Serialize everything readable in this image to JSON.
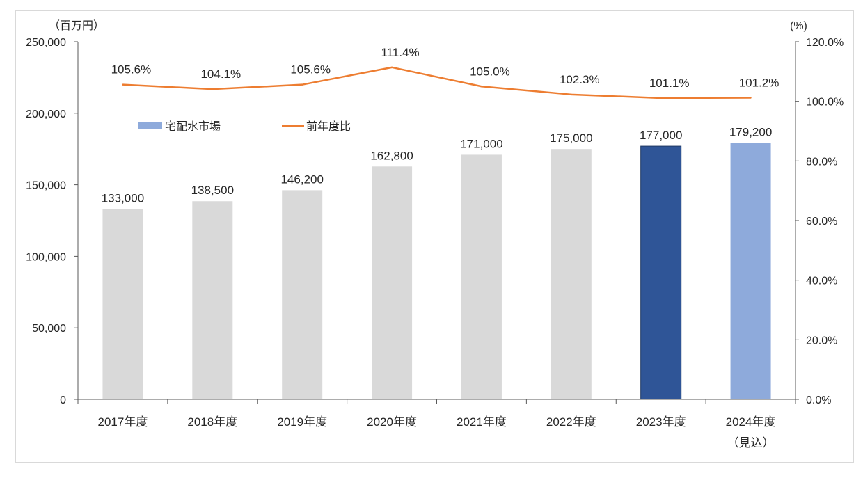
{
  "chart_data": {
    "type": "bar+line",
    "categories": [
      "2017年度",
      "2018年度",
      "2019年度",
      "2020年度",
      "2021年度",
      "2022年度",
      "2023年度",
      "2024年度"
    ],
    "category_sublabels": [
      "",
      "",
      "",
      "",
      "",
      "",
      "",
      "（見込）"
    ],
    "series": [
      {
        "name": "宅配水市場",
        "type": "bar",
        "axis": "left",
        "values": [
          133000,
          138500,
          146200,
          162800,
          171000,
          175000,
          177000,
          179200
        ],
        "labels": [
          "133,000",
          "138,500",
          "146,200",
          "162,800",
          "171,000",
          "175,000",
          "177,000",
          "179,200"
        ],
        "colors": [
          "#d9d9d9",
          "#d9d9d9",
          "#d9d9d9",
          "#d9d9d9",
          "#d9d9d9",
          "#d9d9d9",
          "#2f5597",
          "#8eaadb"
        ]
      },
      {
        "name": "前年度比",
        "type": "line",
        "axis": "right",
        "values": [
          105.6,
          104.1,
          105.6,
          111.4,
          105.0,
          102.3,
          101.1,
          101.2
        ],
        "labels": [
          "105.6%",
          "104.1%",
          "105.6%",
          "111.4%",
          "105.0%",
          "102.3%",
          "101.1%",
          "101.2%"
        ],
        "color": "#ed7d31"
      }
    ],
    "left_axis": {
      "label": "（百万円）",
      "ylim": [
        0,
        250000
      ],
      "ticks": [
        "0",
        "50,000",
        "100,000",
        "150,000",
        "200,000",
        "250,000"
      ],
      "tick_values": [
        0,
        50000,
        100000,
        150000,
        200000,
        250000
      ]
    },
    "right_axis": {
      "label": "(%)",
      "ylim": [
        0,
        120
      ],
      "ticks": [
        "0.0%",
        "20.0%",
        "40.0%",
        "60.0%",
        "80.0%",
        "100.0%",
        "120.0%"
      ],
      "tick_values": [
        0,
        20,
        40,
        60,
        80,
        100,
        120
      ]
    },
    "legend": {
      "placement": "top-left",
      "items": [
        {
          "label": "宅配水市場",
          "color": "#8eaadb"
        },
        {
          "label": "前年度比",
          "color": "#ed7d31"
        }
      ]
    },
    "grid": false
  }
}
